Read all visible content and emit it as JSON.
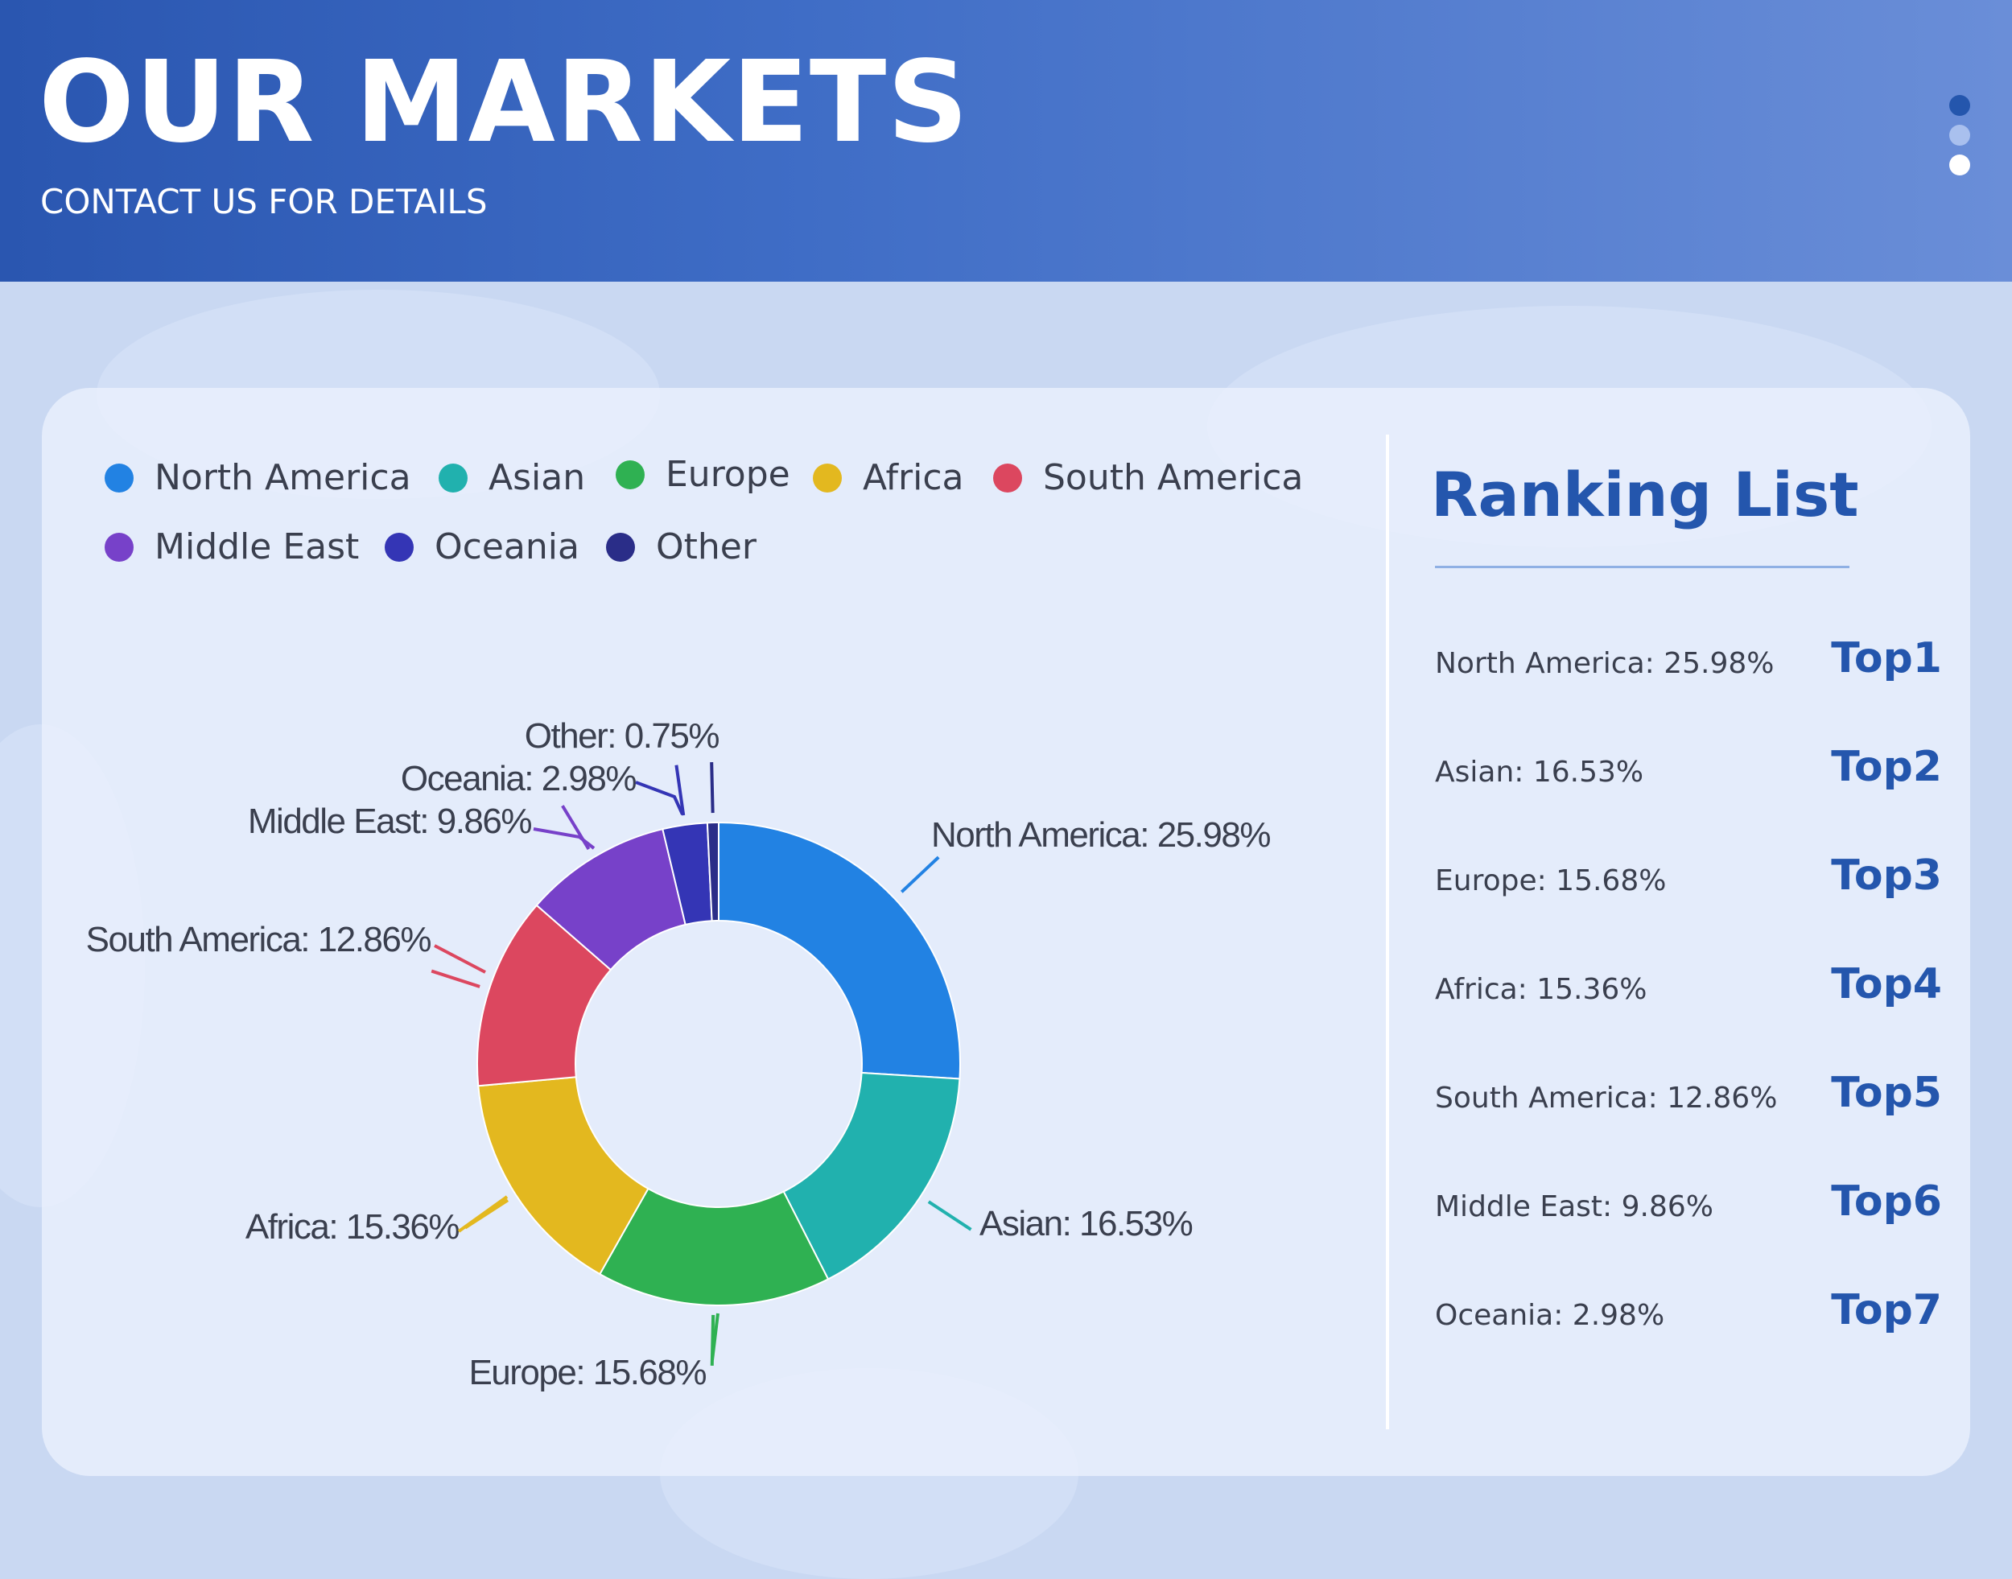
{
  "header": {
    "title": "OUR MARKETS",
    "subtitle": "CONTACT US FOR DETAILS",
    "menu_dot_colors": [
      "#2456ad",
      "#a9c0ee",
      "#ffffff"
    ]
  },
  "chart_data": {
    "type": "pie",
    "donut": true,
    "legend_position": "top-left",
    "categories": [
      "North America",
      "Asian",
      "Europe",
      "Africa",
      "South America",
      "Middle East",
      "Oceania",
      "Other"
    ],
    "values": [
      25.98,
      16.53,
      15.68,
      15.36,
      12.86,
      9.86,
      2.98,
      0.75
    ],
    "unit": "%",
    "colors": [
      "#2282e3",
      "#21b1ae",
      "#2fb152",
      "#e3b81f",
      "#dc475f",
      "#7741c9",
      "#3435b5",
      "#2a2d88"
    ],
    "slice_labels": [
      "North America: 25.98%",
      "Asian: 16.53%",
      "Europe: 15.68%",
      "Africa: 15.36%",
      "South America: 12.86%",
      "Middle East: 9.86%",
      "Oceania: 2.98%",
      "Other: 0.75%"
    ]
  },
  "ranking": {
    "title": "Ranking List",
    "items": [
      {
        "text": "North America: 25.98%",
        "rank": "Top1"
      },
      {
        "text": "Asian: 16.53%",
        "rank": "Top2"
      },
      {
        "text": "Europe: 15.68%",
        "rank": "Top3"
      },
      {
        "text": "Africa: 15.36%",
        "rank": "Top4"
      },
      {
        "text": "South America: 12.86%",
        "rank": "Top5"
      },
      {
        "text": "Middle East: 9.86%",
        "rank": "Top6"
      },
      {
        "text": "Oceania: 2.98%",
        "rank": "Top7"
      }
    ]
  }
}
